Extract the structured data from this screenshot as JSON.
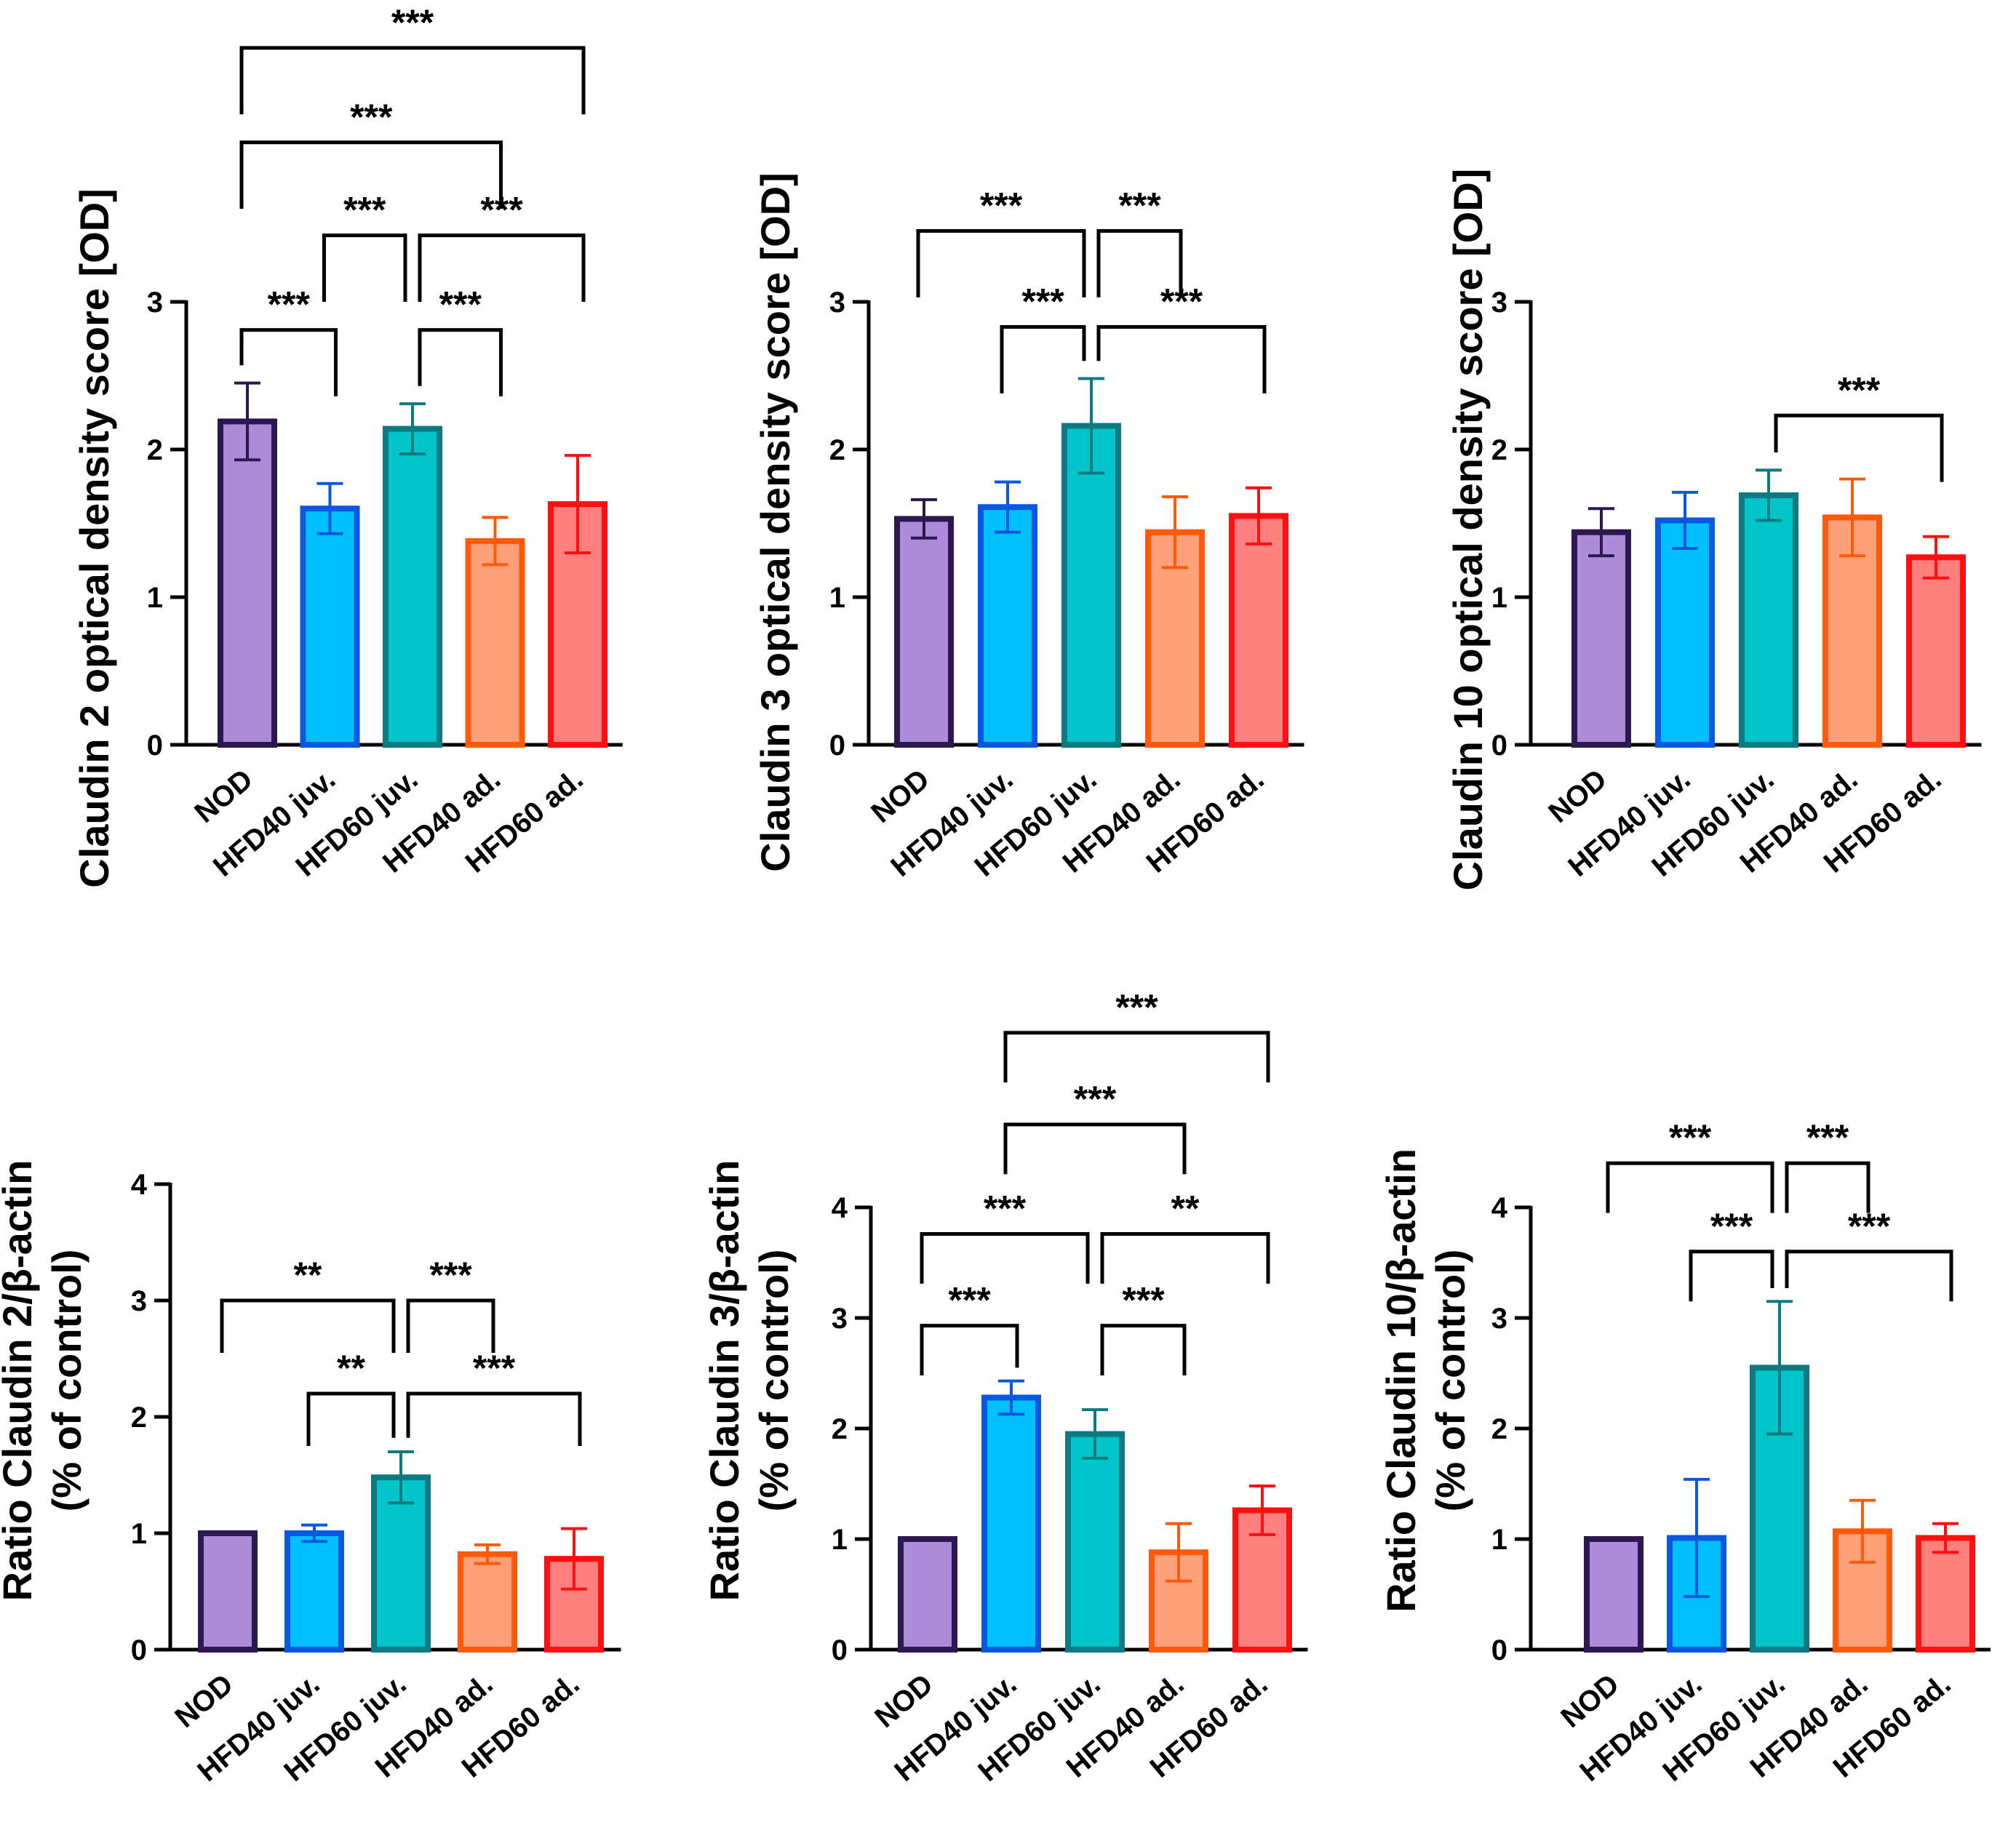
{
  "colors": {
    "NOD": {
      "fill": "#ac8cd8",
      "stroke": "#2c1750"
    },
    "HFD40 juv.": {
      "fill": "#00bfff",
      "stroke": "#0a58e0"
    },
    "HFD60 juv.": {
      "fill": "#00c4c8",
      "stroke": "#0c7a80"
    },
    "HFD40 ad.": {
      "fill": "#ffa07a",
      "stroke": "#ff5a0a"
    },
    "HFD60 ad.": {
      "fill": "#ff7f7f",
      "stroke": "#ff1010"
    }
  },
  "chart_data": [
    {
      "type": "bar",
      "ylabel_lines": [
        "Claudin 2 optical density score [OD]"
      ],
      "categories": [
        "NOD",
        "HFD40 juv.",
        "HFD60 juv.",
        "HFD40 ad.",
        "HFD60 ad."
      ],
      "values": [
        2.19,
        1.6,
        2.14,
        1.38,
        1.63
      ],
      "errors": [
        0.26,
        0.17,
        0.17,
        0.16,
        0.33
      ],
      "ylim": [
        0,
        3
      ],
      "yticks": [
        0,
        1,
        2,
        3
      ],
      "comparisons": [
        {
          "from": 0,
          "to": 4,
          "y": 4.72,
          "label": "***"
        },
        {
          "from": 0,
          "to": 3,
          "y": 4.08,
          "label": "***"
        },
        {
          "from": 1,
          "to": 2,
          "y": 3.45,
          "label": "***"
        },
        {
          "from": 2,
          "to": 4,
          "y": 3.45,
          "label": "***"
        },
        {
          "from": 0,
          "to": 1,
          "y": 2.81,
          "label": "***"
        },
        {
          "from": 2,
          "to": 3,
          "y": 2.81,
          "label": "***"
        }
      ]
    },
    {
      "type": "bar",
      "ylabel_lines": [
        "Claudin 3 optical density score [OD]"
      ],
      "categories": [
        "NOD",
        "HFD40 juv.",
        "HFD60 juv.",
        "HFD40 ad.",
        "HFD60 ad."
      ],
      "values": [
        1.53,
        1.61,
        2.16,
        1.44,
        1.55
      ],
      "errors": [
        0.13,
        0.17,
        0.32,
        0.24,
        0.19
      ],
      "ylim": [
        0,
        3
      ],
      "yticks": [
        0,
        1,
        2,
        3
      ],
      "comparisons": [
        {
          "from": 0,
          "to": 2,
          "y": 3.48,
          "label": "***"
        },
        {
          "from": 2,
          "to": 3,
          "y": 3.48,
          "label": "***"
        },
        {
          "from": 1,
          "to": 2,
          "y": 2.83,
          "label": "***"
        },
        {
          "from": 2,
          "to": 4,
          "y": 2.83,
          "label": "***"
        }
      ]
    },
    {
      "type": "bar",
      "ylabel_lines": [
        "Claudin 10 optical density score [OD]"
      ],
      "categories": [
        "NOD",
        "HFD40 juv.",
        "HFD60 juv.",
        "HFD40 ad.",
        "HFD60 ad."
      ],
      "values": [
        1.44,
        1.52,
        1.69,
        1.54,
        1.27
      ],
      "errors": [
        0.16,
        0.19,
        0.17,
        0.26,
        0.14
      ],
      "ylim": [
        0,
        3
      ],
      "yticks": [
        0,
        1,
        2,
        3
      ],
      "comparisons": [
        {
          "from": 2,
          "to": 4,
          "y": 2.23,
          "label": "***"
        }
      ]
    },
    {
      "type": "bar",
      "ylabel_lines": [
        "Ratio Claudin 2/β-actin",
        "(% of control)"
      ],
      "categories": [
        "NOD",
        "HFD40 juv.",
        "HFD60 juv.",
        "HFD40 ad.",
        "HFD60 ad."
      ],
      "values": [
        1.0,
        1.0,
        1.48,
        0.82,
        0.78
      ],
      "errors": [
        0.0,
        0.07,
        0.22,
        0.08,
        0.26
      ],
      "ylim": [
        0,
        4
      ],
      "yticks": [
        0,
        1,
        2,
        3,
        4
      ],
      "comparisons": [
        {
          "from": 0,
          "to": 2,
          "y": 3.0,
          "label": "**"
        },
        {
          "from": 2,
          "to": 3,
          "y": 3.0,
          "label": "***"
        },
        {
          "from": 1,
          "to": 2,
          "y": 2.2,
          "label": "**"
        },
        {
          "from": 2,
          "to": 4,
          "y": 2.2,
          "label": "***"
        }
      ]
    },
    {
      "type": "bar",
      "ylabel_lines": [
        "Ratio Claudin 3/β-actin",
        "(% of control)"
      ],
      "categories": [
        "NOD",
        "HFD40 juv.",
        "HFD60 juv.",
        "HFD40 ad.",
        "HFD60 ad."
      ],
      "values": [
        1.0,
        2.28,
        1.95,
        0.88,
        1.26
      ],
      "errors": [
        0.0,
        0.15,
        0.22,
        0.26,
        0.22
      ],
      "ylim": [
        0,
        4
      ],
      "yticks": [
        0,
        1,
        2,
        3,
        4
      ],
      "comparisons": [
        {
          "from": 1,
          "to": 4,
          "y": 5.58,
          "label": "***"
        },
        {
          "from": 1,
          "to": 3,
          "y": 4.75,
          "label": "***"
        },
        {
          "from": 0,
          "to": 2,
          "y": 3.76,
          "label": "***"
        },
        {
          "from": 2,
          "to": 4,
          "y": 3.76,
          "label": "**"
        },
        {
          "from": 0,
          "to": 1,
          "y": 2.93,
          "label": "***"
        },
        {
          "from": 2,
          "to": 3,
          "y": 2.93,
          "label": "***"
        }
      ]
    },
    {
      "type": "bar",
      "ylabel_lines": [
        "Ratio Claudin 10/β-actin",
        "(% of control)"
      ],
      "categories": [
        "NOD",
        "HFD40 juv.",
        "HFD60 juv.",
        "HFD40 ad.",
        "HFD60 ad."
      ],
      "values": [
        1.0,
        1.01,
        2.55,
        1.07,
        1.01
      ],
      "errors": [
        0.0,
        0.53,
        0.6,
        0.28,
        0.13
      ],
      "ylim": [
        0,
        4
      ],
      "yticks": [
        0,
        1,
        2,
        3,
        4
      ],
      "comparisons": [
        {
          "from": 0,
          "to": 2,
          "y": 4.4,
          "label": "***"
        },
        {
          "from": 2,
          "to": 3,
          "y": 4.4,
          "label": "***"
        },
        {
          "from": 1,
          "to": 2,
          "y": 3.6,
          "label": "***"
        },
        {
          "from": 2,
          "to": 4,
          "y": 3.6,
          "label": "***"
        }
      ]
    }
  ]
}
